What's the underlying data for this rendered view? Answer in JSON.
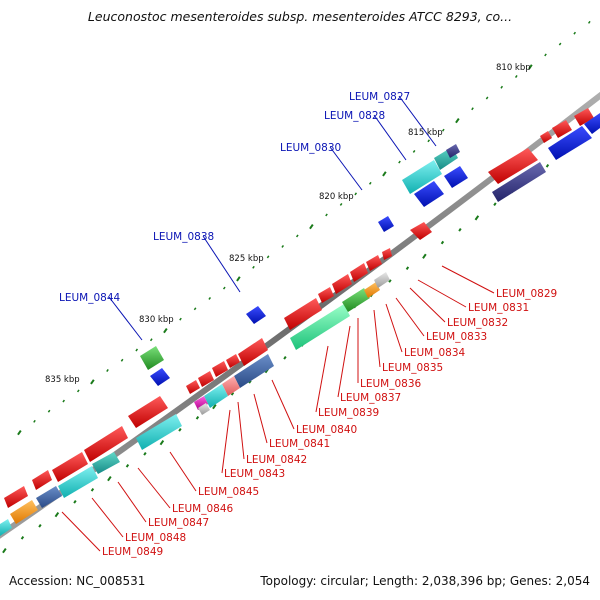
{
  "title": "Leuconostoc mesenteroides subsp. mesenteroides ATCC 8293, co...",
  "footer": {
    "accession": "Accession: NC_008531",
    "summary": "Topology: circular; Length: 2,038,396 bp; Genes: 2,054"
  },
  "colors": {
    "forward_label": "#0a14b4",
    "reverse_label": "#d01010",
    "tick": "#1a7a1a",
    "backbone": "#8a8a8a"
  },
  "scale": {
    "kbp_labels": [
      "810 kbp",
      "815 kbp",
      "820 kbp",
      "825 kbp",
      "830 kbp",
      "835 kbp"
    ]
  },
  "forward_genes": [
    "LEUM_0827",
    "LEUM_0828",
    "LEUM_0830",
    "LEUM_0838",
    "LEUM_0844"
  ],
  "reverse_genes": [
    "LEUM_0829",
    "LEUM_0831",
    "LEUM_0832",
    "LEUM_0833",
    "LEUM_0834",
    "LEUM_0835",
    "LEUM_0836",
    "LEUM_0837",
    "LEUM_0839",
    "LEUM_0840",
    "LEUM_0841",
    "LEUM_0842",
    "LEUM_0843",
    "LEUM_0845",
    "LEUM_0846",
    "LEUM_0847",
    "LEUM_0848",
    "LEUM_0849"
  ]
}
